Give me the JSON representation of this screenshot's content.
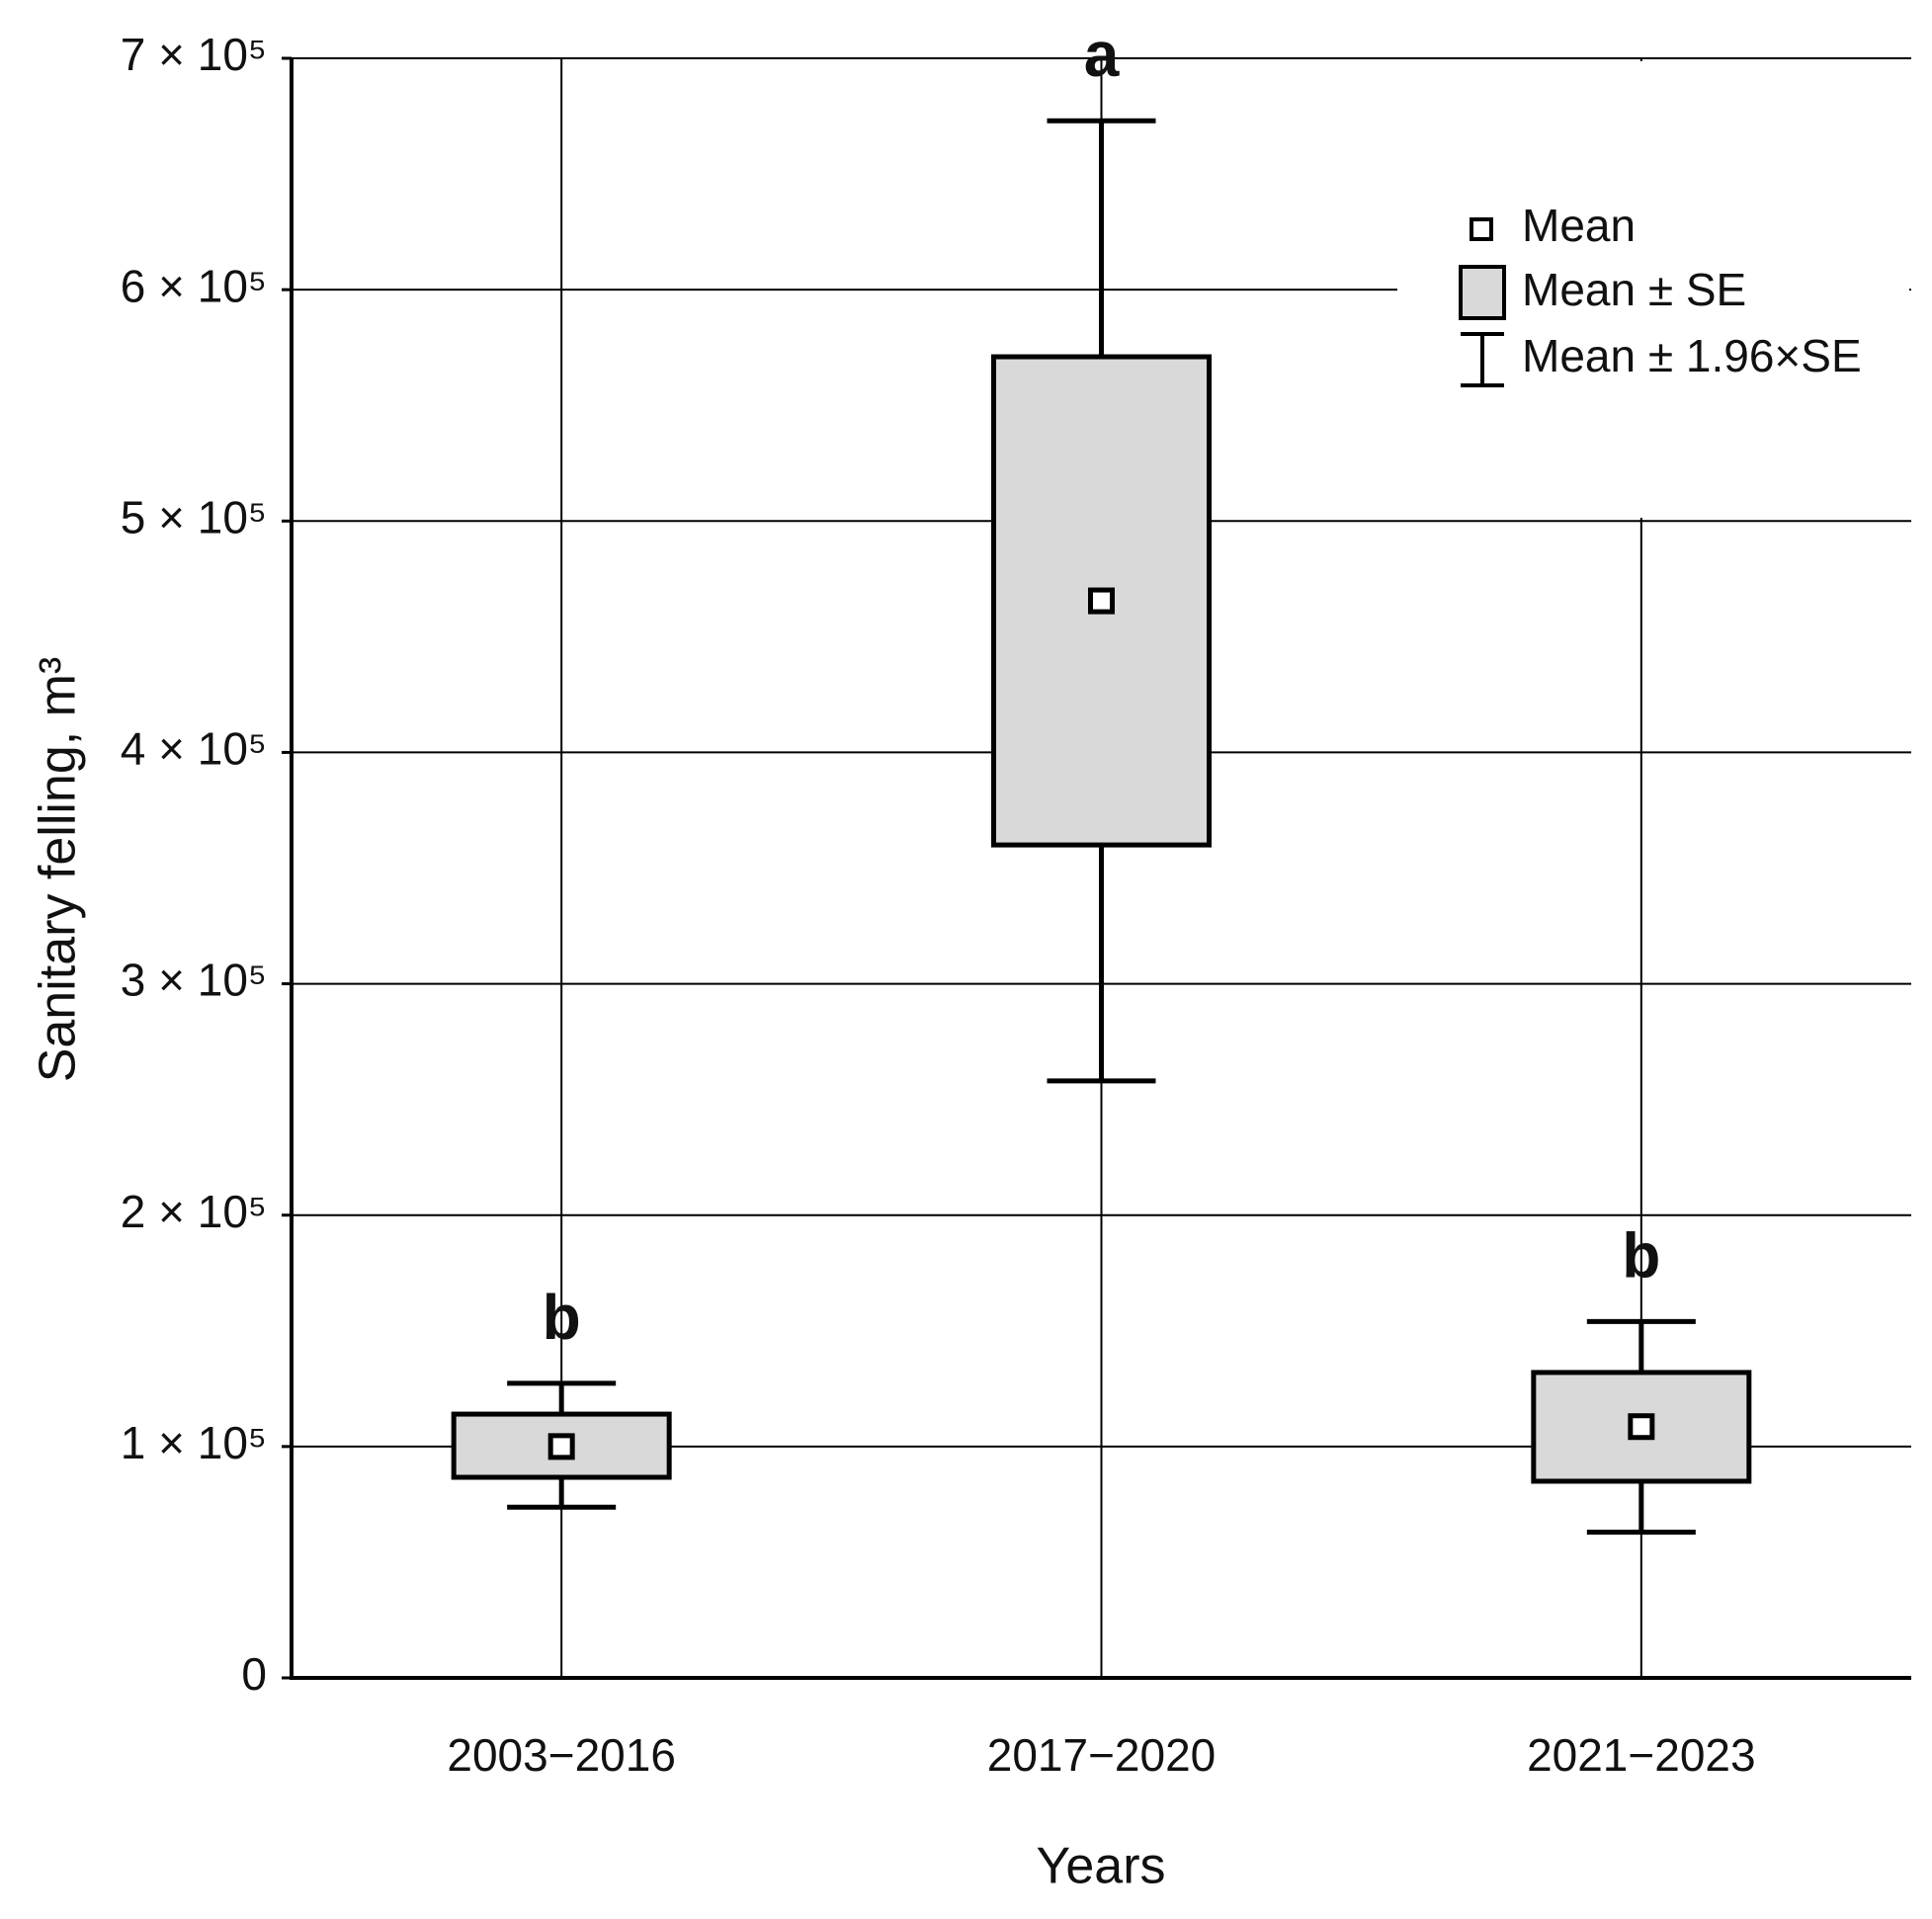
{
  "chart_data": {
    "type": "box",
    "x_label": "Years",
    "y_label": "Sanitary felling, m³",
    "categories": [
      "2003−2016",
      "2017−2020",
      "2021−2023"
    ],
    "mean": [
      100000,
      465500,
      108600
    ],
    "se_low": [
      86700,
      360000,
      85000
    ],
    "se_high": [
      114000,
      571000,
      132000
    ],
    "ci_low": [
      73800,
      258000,
      63000
    ],
    "ci_high": [
      127300,
      673000,
      154000
    ],
    "annotations": [
      "b",
      "a",
      "b"
    ],
    "legend": {
      "mean": "Mean",
      "se": "Mean ± SE",
      "ci": "Mean ± 1.96×SE"
    },
    "box_color": "#d9d9d9",
    "ylim": [
      0,
      700000
    ],
    "yticks": [
      0,
      {
        "value": 100000,
        "label": "1 × 10⁵"
      },
      {
        "value": 200000,
        "label": "2 × 10⁵"
      },
      {
        "value": 300000,
        "label": "3 × 10⁵"
      },
      {
        "value": 400000,
        "label": "4 × 10⁵"
      },
      {
        "value": 500000,
        "label": "5 × 10⁵"
      },
      {
        "value": 600000,
        "label": "6 × 10⁵"
      },
      {
        "value": 700000,
        "label": "7 × 10⁵"
      }
    ],
    "grid": true
  }
}
